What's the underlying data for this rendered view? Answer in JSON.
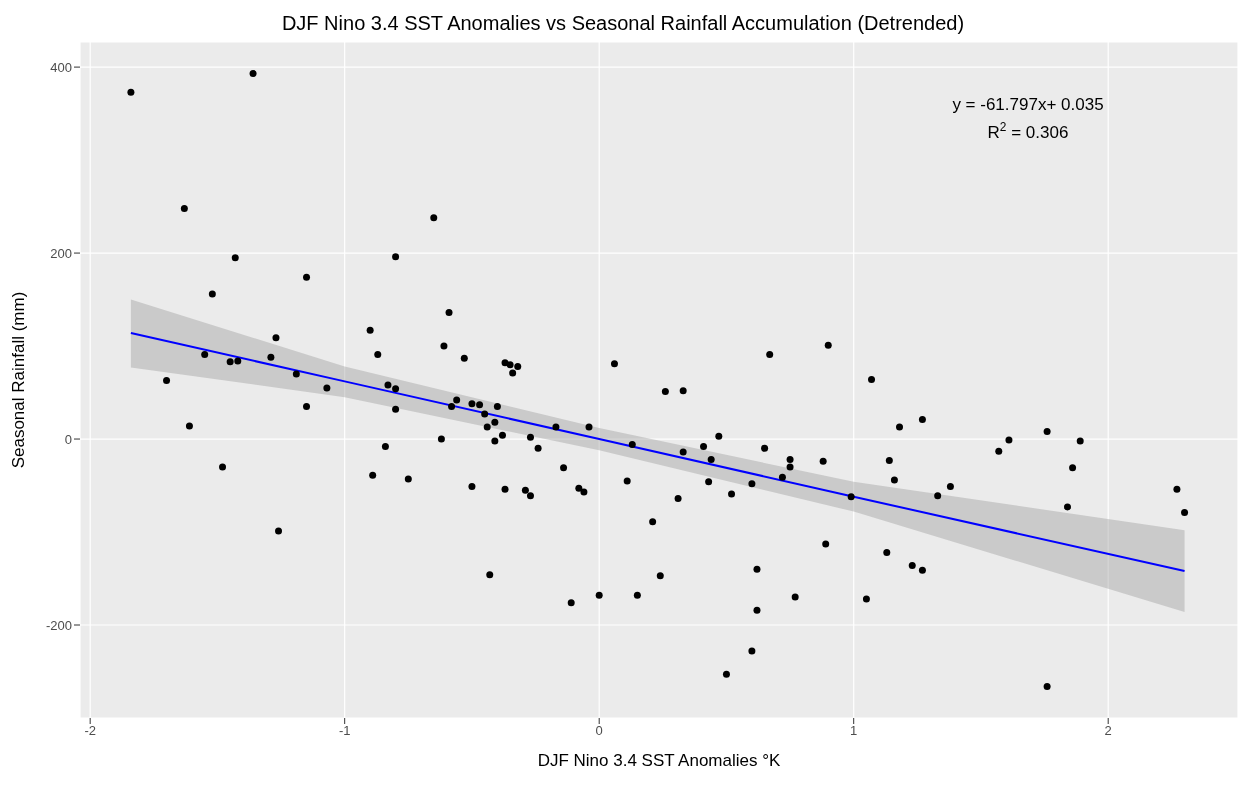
{
  "chart_data": {
    "type": "scatter",
    "title": "DJF Nino 3.4 SST Anomalies vs Seasonal Rainfall Accumulation (Detrended)",
    "xlabel": "DJF Nino 3.4 SST Anomalies °K",
    "ylabel": "Seasonal Rainfall (mm)",
    "annotations": [
      "y = -61.797x+ 0.035",
      "R$^{2}$ = 0.306"
    ],
    "xlim": [
      -2.04,
      2.51
    ],
    "ylim": [
      -300,
      427
    ],
    "xticks": [
      -2,
      -1,
      0,
      1,
      2
    ],
    "yticks": [
      -200,
      0,
      200,
      400
    ],
    "grid": true,
    "series": [
      {
        "marker": "circle",
        "color": "#000000",
        "x": [
          -1.84,
          -1.7,
          -1.63,
          -1.61,
          -1.55,
          -1.52,
          -1.48,
          -1.45,
          -1.43,
          -1.42,
          -1.36,
          -1.29,
          -1.27,
          -1.26,
          -1.19,
          -1.15,
          -1.15,
          -1.07,
          -0.9,
          -0.89,
          -0.87,
          -0.84,
          -0.83,
          -0.8,
          -0.8,
          -0.8,
          -0.75,
          -0.65,
          -0.62,
          -0.61,
          -0.59,
          -0.58,
          -0.56,
          -0.53,
          -0.5,
          -0.5,
          -0.47,
          -0.45,
          -0.44,
          -0.43,
          -0.41,
          -0.41,
          -0.4,
          -0.38,
          -0.37,
          -0.37,
          -0.35,
          -0.34,
          -0.32,
          -0.29,
          -0.27,
          -0.27,
          -0.24,
          -0.17,
          -0.14,
          -0.11,
          -0.08,
          -0.06,
          -0.04,
          0.0,
          0.06,
          0.11,
          0.13,
          0.15,
          0.21,
          0.24,
          0.26,
          0.31,
          0.33,
          0.33,
          0.41,
          0.43,
          0.44,
          0.47,
          0.5,
          0.52,
          0.6,
          0.6,
          0.62,
          0.62,
          0.65,
          0.67,
          0.72,
          0.75,
          0.75,
          0.77,
          0.88,
          0.89,
          0.9,
          0.99,
          1.05,
          1.07,
          1.13,
          1.14,
          1.16,
          1.18,
          1.23,
          1.27,
          1.27,
          1.33,
          1.38,
          1.57,
          1.61,
          1.76,
          1.76,
          1.84,
          1.86,
          1.89,
          2.27,
          2.3
        ],
        "values": [
          373,
          63,
          248,
          14,
          91,
          156,
          -30,
          83,
          195,
          84,
          393,
          88,
          109,
          -99,
          70,
          174,
          35,
          55,
          117,
          -39,
          91,
          -8,
          58,
          54,
          196,
          32,
          -43,
          238,
          0,
          100,
          136,
          35,
          42,
          87,
          -51,
          38,
          37,
          27,
          13,
          -146,
          18,
          -2,
          35,
          4,
          82,
          -54,
          80,
          71,
          78,
          -55,
          2,
          -61,
          -10,
          13,
          -31,
          -176,
          -53,
          -57,
          13,
          -168,
          81,
          -45,
          -6,
          -168,
          -89,
          -147,
          51,
          -64,
          52,
          -14,
          -8,
          -46,
          -22,
          3,
          -253,
          -59,
          -228,
          -48,
          -140,
          -184,
          -10,
          91,
          -41,
          -30,
          -22,
          -170,
          -24,
          -113,
          101,
          -62,
          -172,
          64,
          -122,
          -23,
          -44,
          13,
          -136,
          21,
          -141,
          -61,
          -51,
          -13,
          -1,
          8,
          -266,
          -73,
          -31,
          -2,
          -54,
          -79
        ]
      },
      {
        "type": "line",
        "marker": "none",
        "color": "#0000ff",
        "x": [
          -1.84,
          -1,
          0,
          1,
          2.3
        ],
        "values": [
          114,
          62,
          0,
          -62,
          -142
        ],
        "lower": [
          77,
          45,
          -12,
          -78,
          -186
        ],
        "upper": [
          150,
          78,
          12,
          -46,
          -98
        ]
      }
    ]
  }
}
